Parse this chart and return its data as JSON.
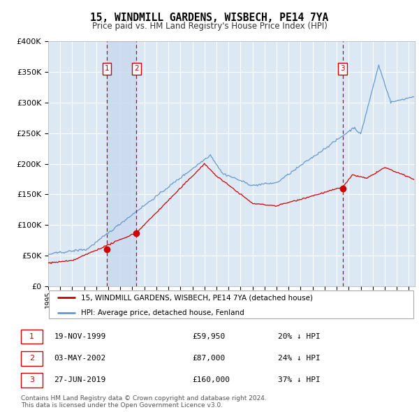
{
  "title": "15, WINDMILL GARDENS, WISBECH, PE14 7YA",
  "subtitle": "Price paid vs. HM Land Registry's House Price Index (HPI)",
  "ylim": [
    0,
    400000
  ],
  "xlim_start": 1995.0,
  "xlim_end": 2025.5,
  "yticks": [
    0,
    50000,
    100000,
    150000,
    200000,
    250000,
    300000,
    350000,
    400000
  ],
  "ytick_labels": [
    "£0",
    "£50K",
    "£100K",
    "£150K",
    "£200K",
    "£250K",
    "£300K",
    "£350K",
    "£400K"
  ],
  "xticks": [
    1995,
    1996,
    1997,
    1998,
    1999,
    2000,
    2001,
    2002,
    2003,
    2004,
    2005,
    2006,
    2007,
    2008,
    2009,
    2010,
    2011,
    2012,
    2013,
    2014,
    2015,
    2016,
    2017,
    2018,
    2019,
    2020,
    2021,
    2022,
    2023,
    2024,
    2025
  ],
  "transactions": [
    {
      "label": "1",
      "date": "19-NOV-1999",
      "price": 59950,
      "x": 1999.88,
      "pct": "20%",
      "dir": "↓"
    },
    {
      "label": "2",
      "date": "03-MAY-2002",
      "price": 87000,
      "x": 2002.33,
      "pct": "24%",
      "dir": "↓"
    },
    {
      "label": "3",
      "date": "27-JUN-2019",
      "price": 160000,
      "x": 2019.49,
      "pct": "37%",
      "dir": "↓"
    }
  ],
  "legend_property": "15, WINDMILL GARDENS, WISBECH, PE14 7YA (detached house)",
  "legend_hpi": "HPI: Average price, detached house, Fenland",
  "footer": "Contains HM Land Registry data © Crown copyright and database right 2024.\nThis data is licensed under the Open Government Licence v3.0.",
  "property_color": "#cc0000",
  "hpi_color": "#6699cc",
  "bg_color": "#dce9f5",
  "shade_color": "#c8d8ee",
  "grid_color": "#ffffff"
}
